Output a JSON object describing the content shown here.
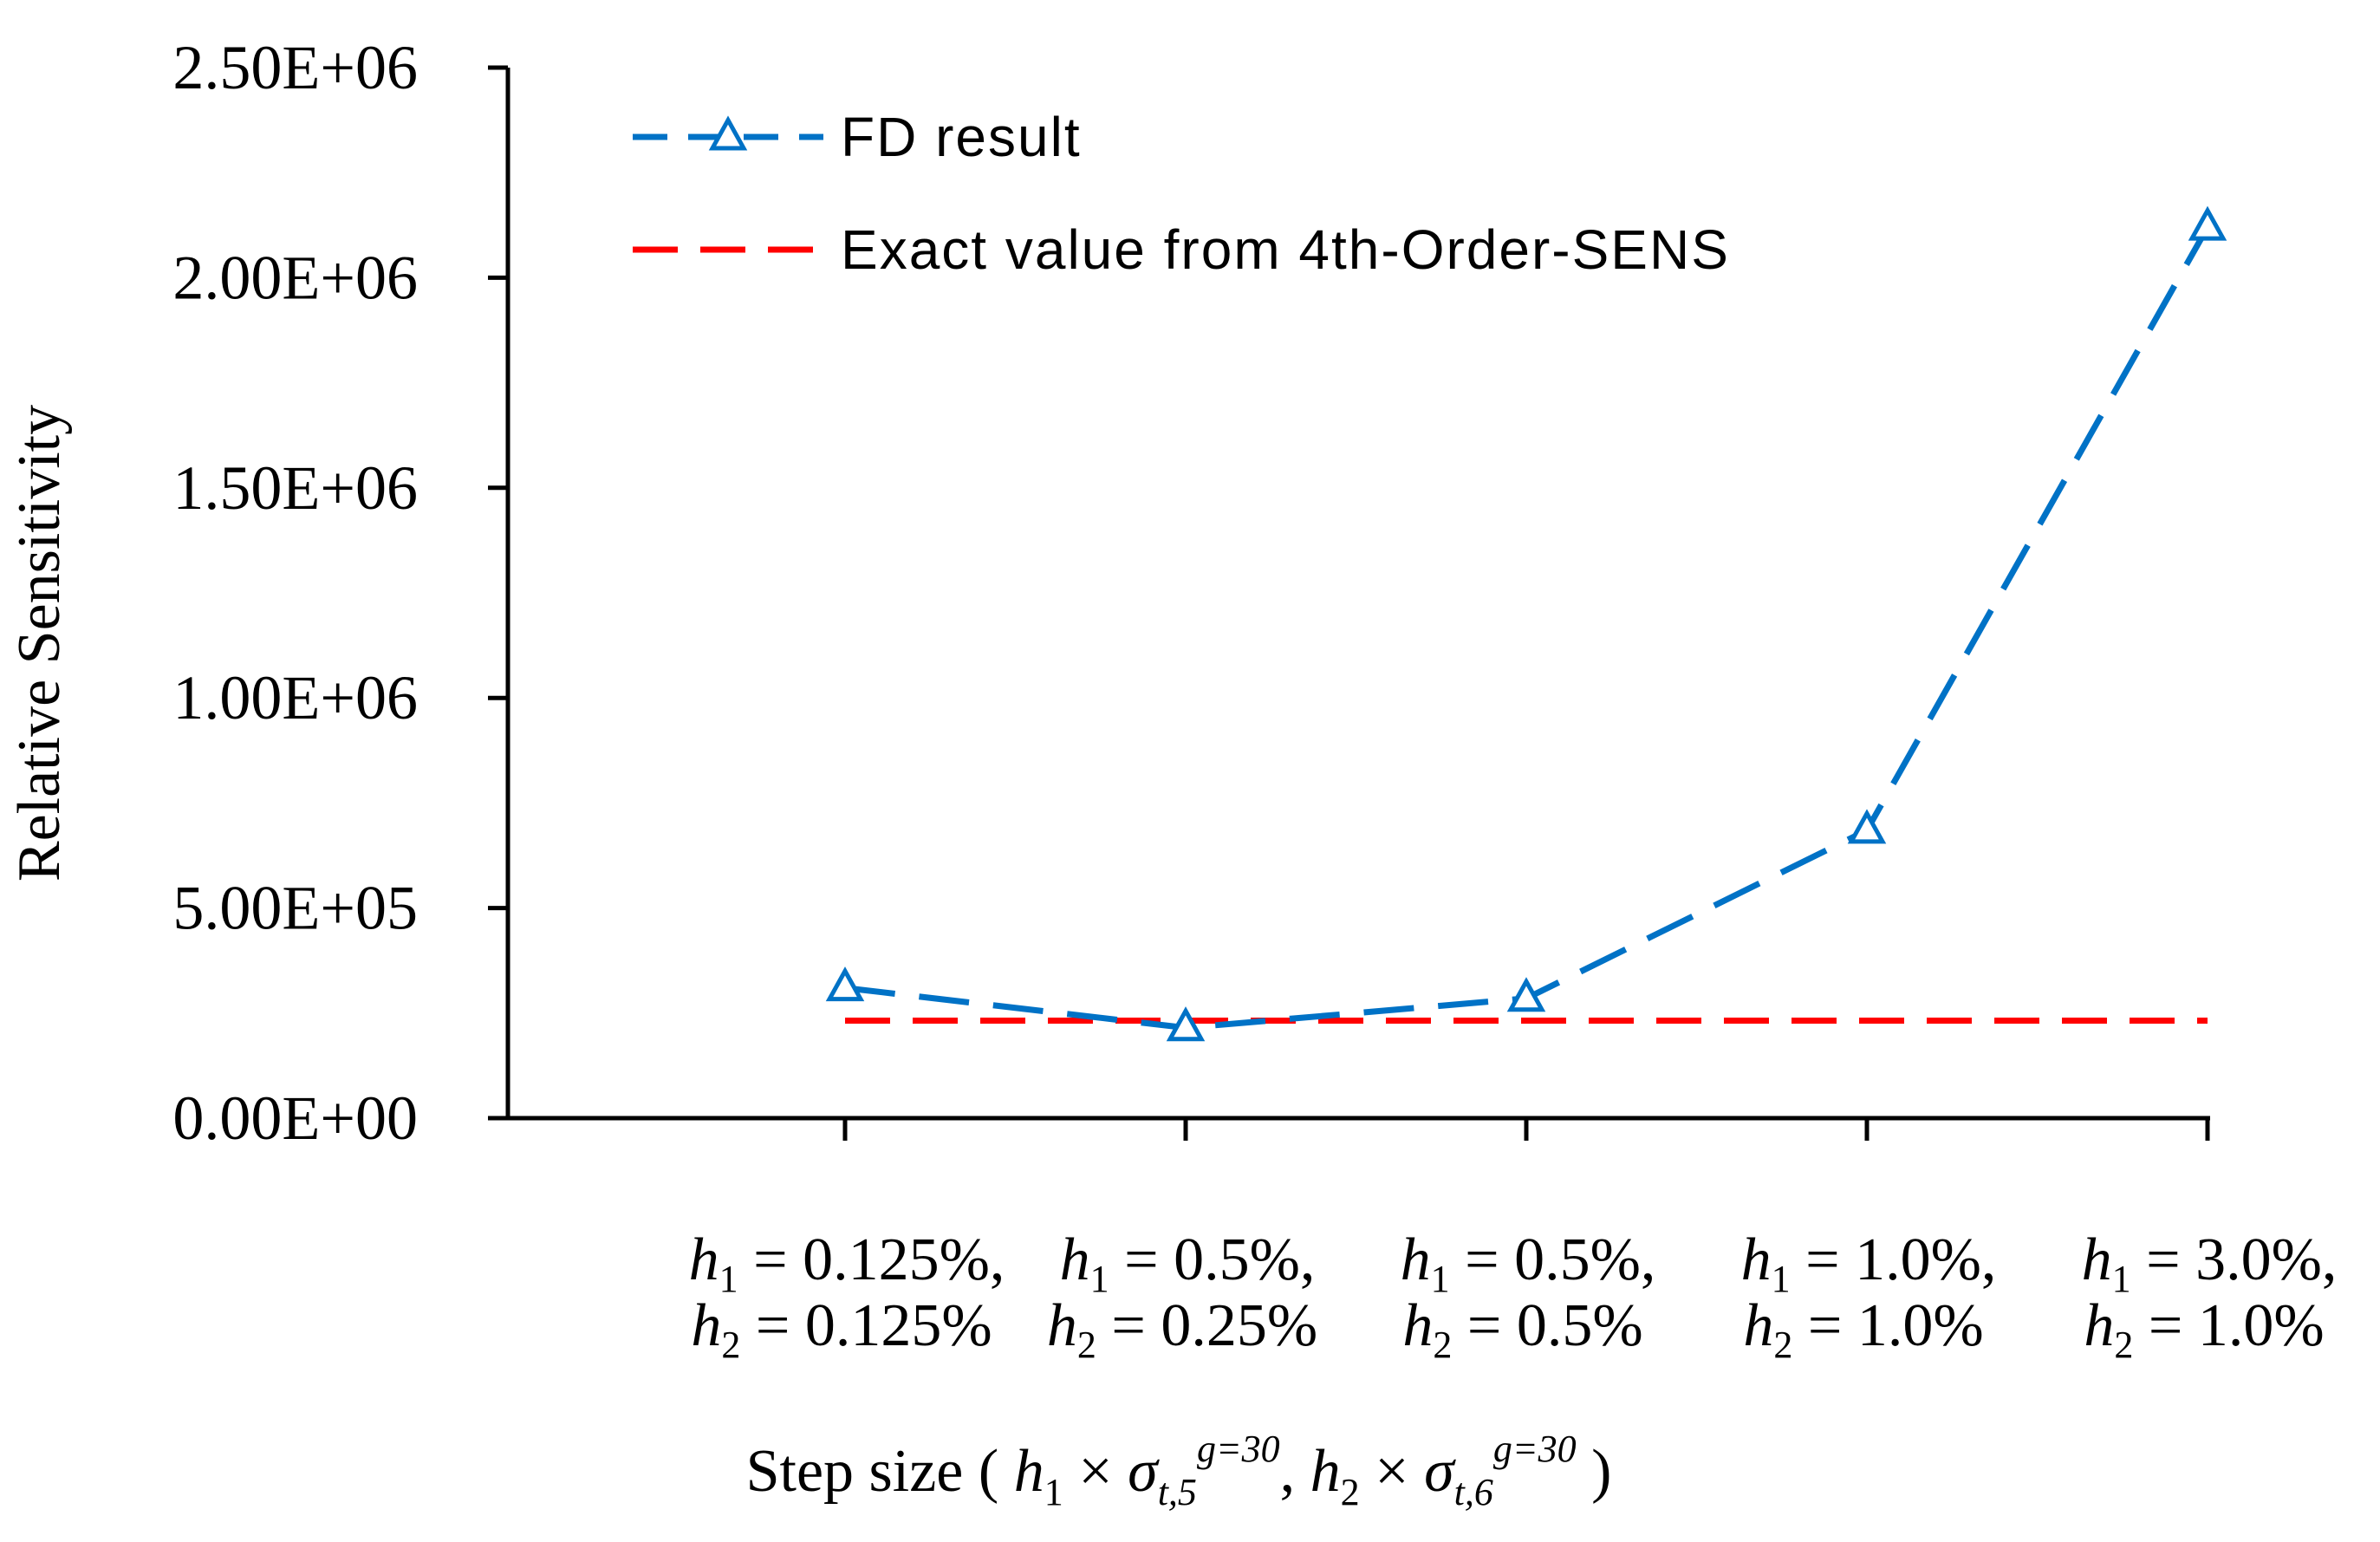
{
  "chart_data": {
    "type": "line",
    "title": "",
    "xlabel": "Step size ( h1 × σt,5g=30, h2 × σt,6g=30 )",
    "ylabel": "Relative Sensitivity",
    "ylim": [
      0,
      2500000
    ],
    "yticks": [
      0,
      500000,
      1000000,
      1500000,
      2000000,
      2500000
    ],
    "ytick_labels": [
      "0.00E+00",
      "5.00E+05",
      "1.00E+06",
      "1.50E+06",
      "2.00E+06",
      "2.50E+06"
    ],
    "categories": [
      {
        "line1": "h1 = 0.125%,",
        "line2": "h2 = 0.125%"
      },
      {
        "line1": "h1 = 0.5%,",
        "line2": "h2 = 0.25%"
      },
      {
        "line1": "h1 = 0.5%,",
        "line2": "h2 = 0.5%"
      },
      {
        "line1": "h1 = 1.0%,",
        "line2": "h2 = 1.0%"
      },
      {
        "line1": "h1 = 3.0%,",
        "line2": "h2 = 1.0%"
      }
    ],
    "series": [
      {
        "name": "FD result",
        "color": "#0072C6",
        "style": "dashed",
        "marker": "triangle",
        "values": [
          310000,
          215000,
          285000,
          685000,
          2120000
        ]
      },
      {
        "name": "Exact value from 4th-Order-SENS",
        "color": "#FF0000",
        "style": "dashed",
        "marker": "none",
        "values": [
          232000,
          232000,
          232000,
          232000,
          232000
        ]
      }
    ],
    "legend_position": "top-left",
    "grid": false
  }
}
